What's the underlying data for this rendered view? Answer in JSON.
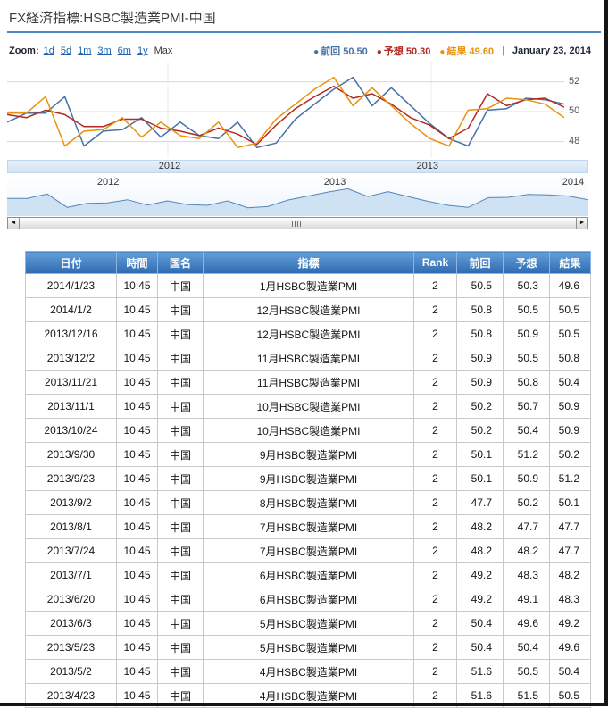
{
  "page": {
    "title": "FX経済指標:HSBC製造業PMI-中国"
  },
  "chart": {
    "zoom_label": "Zoom:",
    "zoom_options": [
      "1d",
      "5d",
      "1m",
      "3m",
      "6m",
      "1y"
    ],
    "zoom_max": "Max",
    "legend_marker": "●",
    "legend": [
      {
        "label": "前回",
        "value": "50.50",
        "color": "#4572a7"
      },
      {
        "label": "予想",
        "value": "50.30",
        "color": "#b22a20"
      },
      {
        "label": "結果",
        "value": "49.60",
        "color": "#e8920e"
      }
    ],
    "legend_separator": "|",
    "date_label": "January 23, 2014",
    "x_labels": [
      "2012",
      "2013"
    ],
    "navigator_labels": [
      "2012",
      "2013",
      "2014"
    ],
    "scrollbar": {
      "left_arrow": "◄",
      "right_arrow": "►"
    }
  },
  "chart_data": {
    "type": "line",
    "x_start": "2011-08",
    "x_end": "2014-01",
    "ylim": [
      46.9,
      53.35
    ],
    "y_gridlines": [
      48,
      50,
      52
    ],
    "legend_position": "top-right",
    "series": [
      {
        "name": "前回",
        "color": "#4572a7",
        "values": [
          49.3,
          49.9,
          49.9,
          51.0,
          47.7,
          48.7,
          48.8,
          49.6,
          48.3,
          49.3,
          48.4,
          48.2,
          49.3,
          47.6,
          47.9,
          49.5,
          50.5,
          51.5,
          52.3,
          50.4,
          51.6,
          50.4,
          49.2,
          48.2,
          47.7,
          50.1,
          50.2,
          50.9,
          50.8,
          50.5
        ]
      },
      {
        "name": "予想",
        "color": "#b22a20",
        "values": [
          49.8,
          49.6,
          50.1,
          49.8,
          49.0,
          49.0,
          49.5,
          49.5,
          48.9,
          48.7,
          48.4,
          48.9,
          48.5,
          47.8,
          49.1,
          50.2,
          51.0,
          51.7,
          50.9,
          51.2,
          50.5,
          49.6,
          49.1,
          48.2,
          48.9,
          51.2,
          50.4,
          50.8,
          50.9,
          50.3
        ]
      },
      {
        "name": "結果",
        "color": "#e8920e",
        "values": [
          49.9,
          49.9,
          51.0,
          47.7,
          48.7,
          48.8,
          49.6,
          48.3,
          49.3,
          48.4,
          48.2,
          49.3,
          47.6,
          47.9,
          49.5,
          50.5,
          51.5,
          52.3,
          50.4,
          51.6,
          50.4,
          49.2,
          48.2,
          47.7,
          50.1,
          50.2,
          50.9,
          50.8,
          50.5,
          49.6
        ]
      }
    ],
    "navigator_values": [
      49.9,
      49.9,
      51.0,
      47.7,
      48.7,
      48.8,
      49.6,
      48.3,
      49.3,
      48.4,
      48.2,
      49.3,
      47.6,
      47.9,
      49.5,
      50.5,
      51.5,
      52.3,
      50.4,
      51.6,
      50.4,
      49.2,
      48.2,
      47.7,
      50.1,
      50.2,
      50.9,
      50.8,
      50.5,
      49.6
    ]
  },
  "table": {
    "headers": [
      "日付",
      "時間",
      "国名",
      "指標",
      "Rank",
      "前回",
      "予想",
      "結果"
    ],
    "rows": [
      [
        "2014/1/23",
        "10:45",
        "中国",
        "1月HSBC製造業PMI",
        "2",
        "50.5",
        "50.3",
        "49.6"
      ],
      [
        "2014/1/2",
        "10:45",
        "中国",
        "12月HSBC製造業PMI",
        "2",
        "50.8",
        "50.5",
        "50.5"
      ],
      [
        "2013/12/16",
        "10:45",
        "中国",
        "12月HSBC製造業PMI",
        "2",
        "50.8",
        "50.9",
        "50.5"
      ],
      [
        "2013/12/2",
        "10:45",
        "中国",
        "11月HSBC製造業PMI",
        "2",
        "50.9",
        "50.5",
        "50.8"
      ],
      [
        "2013/11/21",
        "10:45",
        "中国",
        "11月HSBC製造業PMI",
        "2",
        "50.9",
        "50.8",
        "50.4"
      ],
      [
        "2013/11/1",
        "10:45",
        "中国",
        "10月HSBC製造業PMI",
        "2",
        "50.2",
        "50.7",
        "50.9"
      ],
      [
        "2013/10/24",
        "10:45",
        "中国",
        "10月HSBC製造業PMI",
        "2",
        "50.2",
        "50.4",
        "50.9"
      ],
      [
        "2013/9/30",
        "10:45",
        "中国",
        "9月HSBC製造業PMI",
        "2",
        "50.1",
        "51.2",
        "50.2"
      ],
      [
        "2013/9/23",
        "10:45",
        "中国",
        "9月HSBC製造業PMI",
        "2",
        "50.1",
        "50.9",
        "51.2"
      ],
      [
        "2013/9/2",
        "10:45",
        "中国",
        "8月HSBC製造業PMI",
        "2",
        "47.7",
        "50.2",
        "50.1"
      ],
      [
        "2013/8/1",
        "10:45",
        "中国",
        "7月HSBC製造業PMI",
        "2",
        "48.2",
        "47.7",
        "47.7"
      ],
      [
        "2013/7/24",
        "10:45",
        "中国",
        "7月HSBC製造業PMI",
        "2",
        "48.2",
        "48.2",
        "47.7"
      ],
      [
        "2013/7/1",
        "10:45",
        "中国",
        "6月HSBC製造業PMI",
        "2",
        "49.2",
        "48.3",
        "48.2"
      ],
      [
        "2013/6/20",
        "10:45",
        "中国",
        "6月HSBC製造業PMI",
        "2",
        "49.2",
        "49.1",
        "48.3"
      ],
      [
        "2013/6/3",
        "10:45",
        "中国",
        "5月HSBC製造業PMI",
        "2",
        "50.4",
        "49.6",
        "49.2"
      ],
      [
        "2013/5/23",
        "10:45",
        "中国",
        "5月HSBC製造業PMI",
        "2",
        "50.4",
        "50.4",
        "49.6"
      ],
      [
        "2013/5/2",
        "10:45",
        "中国",
        "4月HSBC製造業PMI",
        "2",
        "51.6",
        "50.5",
        "50.4"
      ],
      [
        "2013/4/23",
        "10:45",
        "中国",
        "4月HSBC製造業PMI",
        "2",
        "51.6",
        "51.5",
        "50.5"
      ]
    ]
  }
}
